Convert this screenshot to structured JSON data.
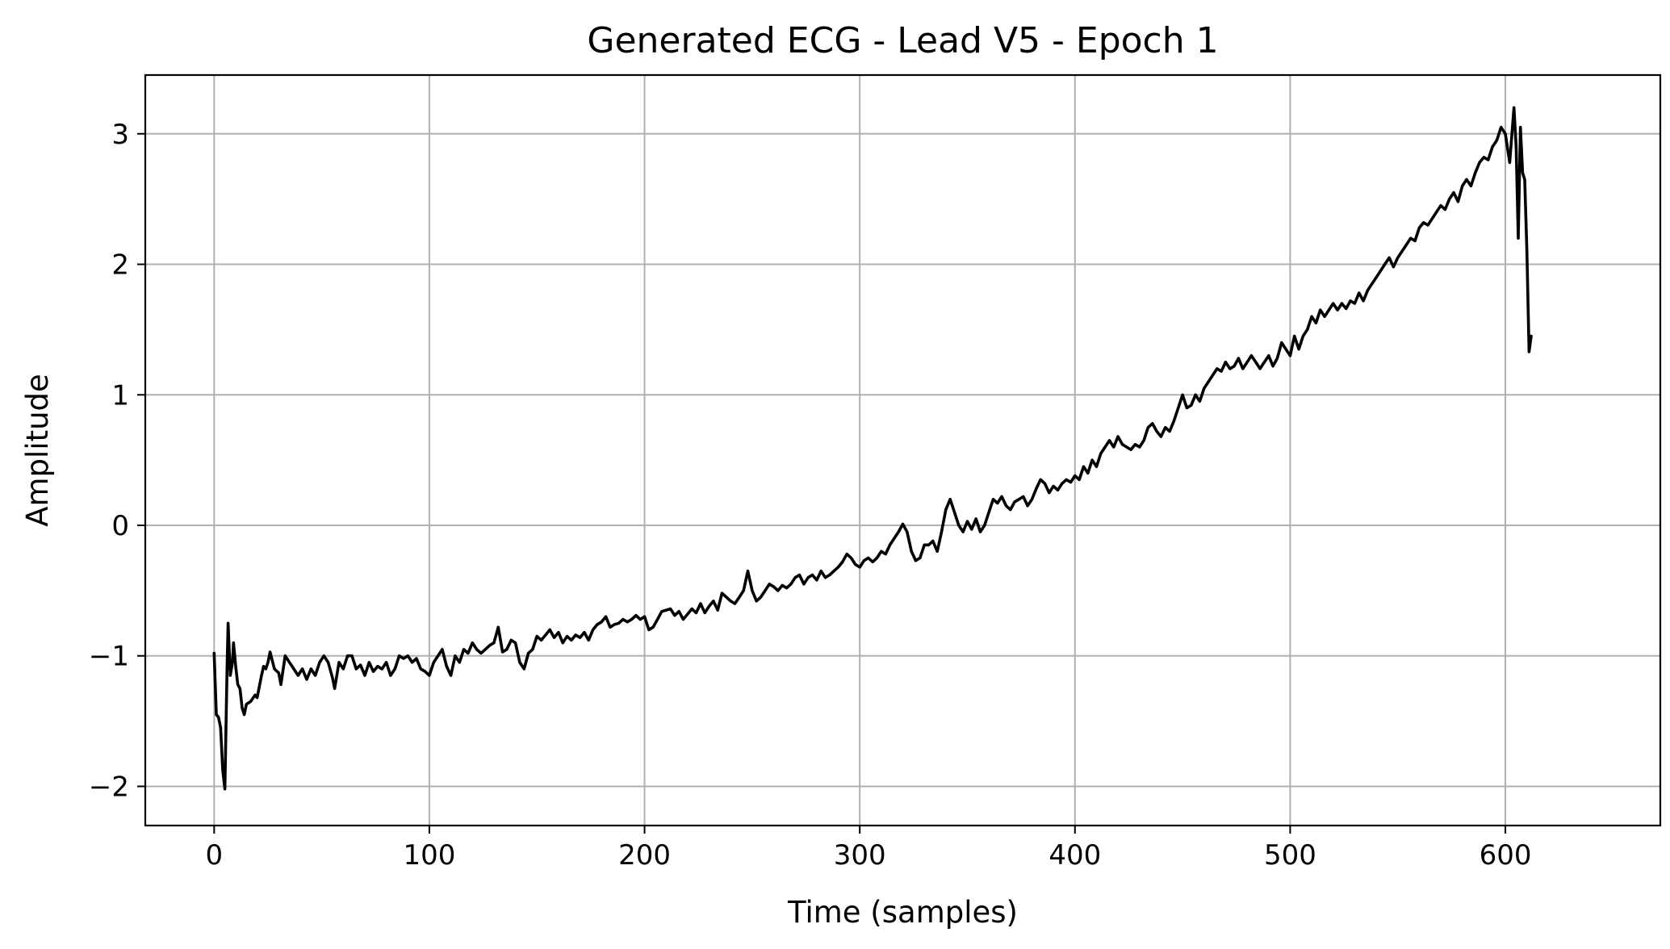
{
  "colors": {
    "line": "#000000",
    "grid": "#b0b0b0",
    "frame": "#000000",
    "background": "#ffffff"
  },
  "chart_data": {
    "type": "line",
    "title": "Generated ECG - Lead V5 - Epoch 1",
    "xlabel": "Time (samples)",
    "ylabel": "Amplitude",
    "xlim": [
      -32,
      672
    ],
    "ylim": [
      -2.3,
      3.45
    ],
    "grid": true,
    "xticks": [
      0,
      100,
      200,
      300,
      400,
      500,
      600
    ],
    "xtick_labels": [
      "0",
      "100",
      "200",
      "300",
      "400",
      "500",
      "600"
    ],
    "yticks": [
      -2,
      -1,
      0,
      1,
      2,
      3
    ],
    "ytick_labels": [
      "−2",
      "−1",
      "0",
      "1",
      "2",
      "3"
    ],
    "series": [
      {
        "color": "#000000",
        "points": [
          [
            0,
            -0.98
          ],
          [
            1,
            -1.45
          ],
          [
            2,
            -1.47
          ],
          [
            3,
            -1.55
          ],
          [
            4,
            -1.88
          ],
          [
            5,
            -2.02
          ],
          [
            6,
            -1.1
          ],
          [
            6.5,
            -0.75
          ],
          [
            7.5,
            -1.15
          ],
          [
            8.5,
            -1.05
          ],
          [
            9,
            -0.9
          ],
          [
            10,
            -1.08
          ],
          [
            11,
            -1.22
          ],
          [
            12,
            -1.25
          ],
          [
            13,
            -1.4
          ],
          [
            14,
            -1.45
          ],
          [
            15,
            -1.37
          ],
          [
            17,
            -1.35
          ],
          [
            19,
            -1.3
          ],
          [
            20,
            -1.32
          ],
          [
            22,
            -1.15
          ],
          [
            23,
            -1.08
          ],
          [
            24,
            -1.1
          ],
          [
            25,
            -1.05
          ],
          [
            26,
            -0.97
          ],
          [
            28,
            -1.1
          ],
          [
            30,
            -1.13
          ],
          [
            31,
            -1.22
          ],
          [
            33,
            -1.0
          ],
          [
            35,
            -1.05
          ],
          [
            37,
            -1.1
          ],
          [
            39,
            -1.15
          ],
          [
            41,
            -1.1
          ],
          [
            43,
            -1.18
          ],
          [
            45,
            -1.1
          ],
          [
            47,
            -1.15
          ],
          [
            49,
            -1.05
          ],
          [
            51,
            -1.0
          ],
          [
            53,
            -1.05
          ],
          [
            55,
            -1.17
          ],
          [
            56,
            -1.25
          ],
          [
            58,
            -1.05
          ],
          [
            60,
            -1.1
          ],
          [
            62,
            -1.0
          ],
          [
            64,
            -1.0
          ],
          [
            66,
            -1.1
          ],
          [
            68,
            -1.07
          ],
          [
            70,
            -1.15
          ],
          [
            72,
            -1.05
          ],
          [
            74,
            -1.12
          ],
          [
            76,
            -1.08
          ],
          [
            78,
            -1.1
          ],
          [
            80,
            -1.05
          ],
          [
            82,
            -1.15
          ],
          [
            84,
            -1.1
          ],
          [
            86,
            -1.0
          ],
          [
            88,
            -1.02
          ],
          [
            90,
            -1.0
          ],
          [
            92,
            -1.05
          ],
          [
            94,
            -1.02
          ],
          [
            96,
            -1.1
          ],
          [
            98,
            -1.12
          ],
          [
            100,
            -1.15
          ],
          [
            102,
            -1.05
          ],
          [
            104,
            -1.0
          ],
          [
            106,
            -0.95
          ],
          [
            108,
            -1.08
          ],
          [
            110,
            -1.15
          ],
          [
            112,
            -1.0
          ],
          [
            114,
            -1.05
          ],
          [
            116,
            -0.95
          ],
          [
            118,
            -0.98
          ],
          [
            120,
            -0.9
          ],
          [
            122,
            -0.95
          ],
          [
            124,
            -0.98
          ],
          [
            126,
            -0.95
          ],
          [
            128,
            -0.92
          ],
          [
            130,
            -0.9
          ],
          [
            132,
            -0.78
          ],
          [
            134,
            -0.97
          ],
          [
            136,
            -0.95
          ],
          [
            138,
            -0.88
          ],
          [
            140,
            -0.9
          ],
          [
            142,
            -1.05
          ],
          [
            144,
            -1.1
          ],
          [
            146,
            -0.98
          ],
          [
            148,
            -0.95
          ],
          [
            150,
            -0.85
          ],
          [
            152,
            -0.88
          ],
          [
            154,
            -0.84
          ],
          [
            156,
            -0.8
          ],
          [
            158,
            -0.86
          ],
          [
            160,
            -0.82
          ],
          [
            162,
            -0.9
          ],
          [
            164,
            -0.85
          ],
          [
            166,
            -0.88
          ],
          [
            168,
            -0.84
          ],
          [
            170,
            -0.86
          ],
          [
            172,
            -0.82
          ],
          [
            174,
            -0.88
          ],
          [
            176,
            -0.8
          ],
          [
            178,
            -0.76
          ],
          [
            180,
            -0.74
          ],
          [
            182,
            -0.7
          ],
          [
            184,
            -0.78
          ],
          [
            186,
            -0.76
          ],
          [
            188,
            -0.75
          ],
          [
            190,
            -0.72
          ],
          [
            192,
            -0.74
          ],
          [
            194,
            -0.72
          ],
          [
            196,
            -0.69
          ],
          [
            198,
            -0.72
          ],
          [
            200,
            -0.7
          ],
          [
            202,
            -0.8
          ],
          [
            204,
            -0.78
          ],
          [
            206,
            -0.72
          ],
          [
            208,
            -0.66
          ],
          [
            210,
            -0.65
          ],
          [
            212,
            -0.64
          ],
          [
            214,
            -0.69
          ],
          [
            216,
            -0.66
          ],
          [
            218,
            -0.72
          ],
          [
            220,
            -0.68
          ],
          [
            222,
            -0.64
          ],
          [
            224,
            -0.67
          ],
          [
            226,
            -0.6
          ],
          [
            228,
            -0.67
          ],
          [
            230,
            -0.62
          ],
          [
            232,
            -0.58
          ],
          [
            234,
            -0.65
          ],
          [
            236,
            -0.52
          ],
          [
            238,
            -0.55
          ],
          [
            240,
            -0.58
          ],
          [
            242,
            -0.6
          ],
          [
            244,
            -0.55
          ],
          [
            246,
            -0.5
          ],
          [
            248,
            -0.35
          ],
          [
            250,
            -0.5
          ],
          [
            252,
            -0.58
          ],
          [
            254,
            -0.55
          ],
          [
            256,
            -0.5
          ],
          [
            258,
            -0.45
          ],
          [
            260,
            -0.47
          ],
          [
            262,
            -0.5
          ],
          [
            264,
            -0.46
          ],
          [
            266,
            -0.48
          ],
          [
            268,
            -0.45
          ],
          [
            270,
            -0.4
          ],
          [
            272,
            -0.38
          ],
          [
            274,
            -0.45
          ],
          [
            276,
            -0.4
          ],
          [
            278,
            -0.38
          ],
          [
            280,
            -0.42
          ],
          [
            282,
            -0.35
          ],
          [
            284,
            -0.4
          ],
          [
            286,
            -0.38
          ],
          [
            288,
            -0.35
          ],
          [
            290,
            -0.32
          ],
          [
            292,
            -0.28
          ],
          [
            294,
            -0.22
          ],
          [
            296,
            -0.25
          ],
          [
            298,
            -0.3
          ],
          [
            300,
            -0.32
          ],
          [
            302,
            -0.27
          ],
          [
            304,
            -0.25
          ],
          [
            306,
            -0.28
          ],
          [
            308,
            -0.25
          ],
          [
            310,
            -0.2
          ],
          [
            312,
            -0.22
          ],
          [
            314,
            -0.15
          ],
          [
            316,
            -0.1
          ],
          [
            318,
            -0.05
          ],
          [
            320,
            0.01
          ],
          [
            322,
            -0.05
          ],
          [
            324,
            -0.2
          ],
          [
            326,
            -0.27
          ],
          [
            328,
            -0.25
          ],
          [
            330,
            -0.15
          ],
          [
            332,
            -0.15
          ],
          [
            334,
            -0.12
          ],
          [
            336,
            -0.2
          ],
          [
            338,
            -0.05
          ],
          [
            340,
            0.12
          ],
          [
            342,
            0.2
          ],
          [
            344,
            0.1
          ],
          [
            346,
            0.0
          ],
          [
            348,
            -0.05
          ],
          [
            350,
            0.03
          ],
          [
            352,
            -0.03
          ],
          [
            354,
            0.05
          ],
          [
            356,
            -0.05
          ],
          [
            358,
            0.0
          ],
          [
            360,
            0.1
          ],
          [
            362,
            0.2
          ],
          [
            364,
            0.17
          ],
          [
            366,
            0.22
          ],
          [
            368,
            0.15
          ],
          [
            370,
            0.12
          ],
          [
            372,
            0.18
          ],
          [
            374,
            0.2
          ],
          [
            376,
            0.22
          ],
          [
            378,
            0.15
          ],
          [
            380,
            0.2
          ],
          [
            382,
            0.28
          ],
          [
            384,
            0.35
          ],
          [
            386,
            0.32
          ],
          [
            388,
            0.25
          ],
          [
            390,
            0.3
          ],
          [
            392,
            0.27
          ],
          [
            394,
            0.32
          ],
          [
            396,
            0.35
          ],
          [
            398,
            0.33
          ],
          [
            400,
            0.38
          ],
          [
            402,
            0.35
          ],
          [
            404,
            0.45
          ],
          [
            406,
            0.4
          ],
          [
            408,
            0.5
          ],
          [
            410,
            0.45
          ],
          [
            412,
            0.55
          ],
          [
            414,
            0.6
          ],
          [
            416,
            0.65
          ],
          [
            418,
            0.6
          ],
          [
            420,
            0.68
          ],
          [
            422,
            0.62
          ],
          [
            424,
            0.6
          ],
          [
            426,
            0.58
          ],
          [
            428,
            0.62
          ],
          [
            430,
            0.6
          ],
          [
            432,
            0.65
          ],
          [
            434,
            0.75
          ],
          [
            436,
            0.78
          ],
          [
            438,
            0.72
          ],
          [
            440,
            0.68
          ],
          [
            442,
            0.75
          ],
          [
            444,
            0.72
          ],
          [
            446,
            0.8
          ],
          [
            448,
            0.9
          ],
          [
            450,
            1.0
          ],
          [
            452,
            0.9
          ],
          [
            454,
            0.92
          ],
          [
            456,
            1.0
          ],
          [
            458,
            0.95
          ],
          [
            460,
            1.05
          ],
          [
            462,
            1.1
          ],
          [
            464,
            1.15
          ],
          [
            466,
            1.2
          ],
          [
            468,
            1.18
          ],
          [
            470,
            1.25
          ],
          [
            472,
            1.2
          ],
          [
            474,
            1.22
          ],
          [
            476,
            1.28
          ],
          [
            478,
            1.2
          ],
          [
            480,
            1.25
          ],
          [
            482,
            1.3
          ],
          [
            484,
            1.25
          ],
          [
            486,
            1.2
          ],
          [
            488,
            1.25
          ],
          [
            490,
            1.3
          ],
          [
            492,
            1.22
          ],
          [
            494,
            1.28
          ],
          [
            496,
            1.4
          ],
          [
            498,
            1.35
          ],
          [
            500,
            1.3
          ],
          [
            502,
            1.45
          ],
          [
            504,
            1.35
          ],
          [
            506,
            1.45
          ],
          [
            508,
            1.5
          ],
          [
            510,
            1.6
          ],
          [
            512,
            1.55
          ],
          [
            514,
            1.65
          ],
          [
            516,
            1.6
          ],
          [
            518,
            1.65
          ],
          [
            520,
            1.7
          ],
          [
            522,
            1.65
          ],
          [
            524,
            1.7
          ],
          [
            526,
            1.66
          ],
          [
            528,
            1.72
          ],
          [
            530,
            1.7
          ],
          [
            532,
            1.78
          ],
          [
            534,
            1.72
          ],
          [
            536,
            1.8
          ],
          [
            538,
            1.85
          ],
          [
            540,
            1.9
          ],
          [
            542,
            1.95
          ],
          [
            544,
            2.0
          ],
          [
            546,
            2.05
          ],
          [
            548,
            1.98
          ],
          [
            550,
            2.05
          ],
          [
            552,
            2.1
          ],
          [
            554,
            2.15
          ],
          [
            556,
            2.2
          ],
          [
            558,
            2.18
          ],
          [
            560,
            2.28
          ],
          [
            562,
            2.32
          ],
          [
            564,
            2.3
          ],
          [
            566,
            2.35
          ],
          [
            568,
            2.4
          ],
          [
            570,
            2.45
          ],
          [
            572,
            2.42
          ],
          [
            574,
            2.5
          ],
          [
            576,
            2.55
          ],
          [
            578,
            2.48
          ],
          [
            580,
            2.6
          ],
          [
            582,
            2.65
          ],
          [
            584,
            2.6
          ],
          [
            586,
            2.7
          ],
          [
            588,
            2.78
          ],
          [
            590,
            2.82
          ],
          [
            592,
            2.8
          ],
          [
            594,
            2.9
          ],
          [
            596,
            2.95
          ],
          [
            598,
            3.05
          ],
          [
            600,
            3.0
          ],
          [
            602,
            2.78
          ],
          [
            604,
            3.2
          ],
          [
            605,
            2.9
          ],
          [
            606,
            2.2
          ],
          [
            607,
            3.05
          ],
          [
            608,
            2.7
          ],
          [
            609,
            2.65
          ],
          [
            610,
            2.1
          ],
          [
            611,
            1.33
          ],
          [
            612,
            1.45
          ]
        ]
      }
    ]
  }
}
